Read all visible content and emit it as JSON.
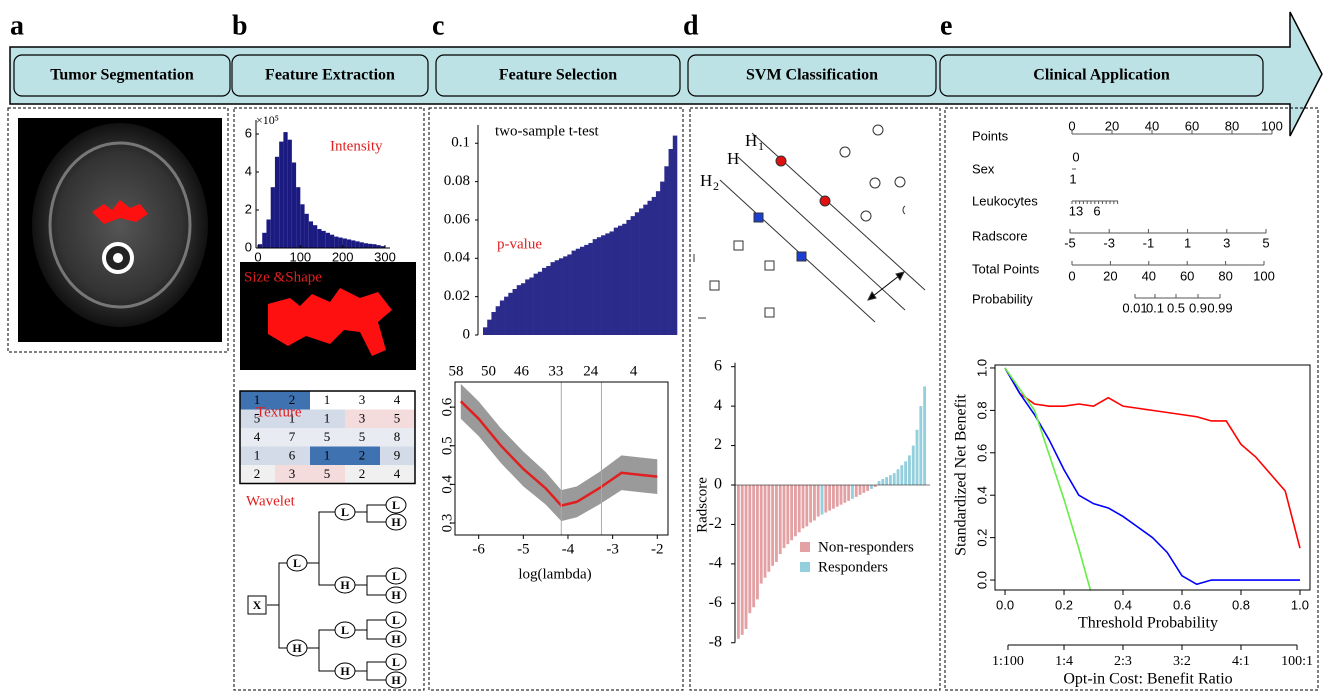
{
  "header": {
    "letters": [
      "a",
      "b",
      "c",
      "d",
      "e"
    ],
    "steps": [
      "Tumor Segmentation",
      "Feature Extraction",
      "Feature Selection",
      "SVM Classification",
      "Clinical Application"
    ]
  },
  "panel_b": {
    "histogram": {
      "exponent_label": "×10⁵",
      "label": "Intensity",
      "bins": [
        0,
        10,
        20,
        30,
        40,
        50,
        60,
        70,
        80,
        90,
        100,
        110,
        120,
        130,
        140,
        150,
        160,
        170,
        180,
        190,
        200,
        210,
        220,
        230,
        240,
        250,
        260,
        270,
        280,
        290,
        300
      ],
      "counts": [
        0.2,
        0.8,
        1.5,
        3.2,
        4.8,
        5.6,
        6.1,
        5.7,
        4.5,
        3.2,
        2.3,
        1.8,
        1.4,
        1.2,
        1.0,
        0.9,
        0.8,
        0.7,
        0.6,
        0.55,
        0.5,
        0.45,
        0.4,
        0.35,
        0.3,
        0.25,
        0.22,
        0.2,
        0.15,
        0.1
      ],
      "color": "#1a1a80",
      "xlim": [
        0,
        300
      ],
      "xticks": [
        0,
        100,
        200,
        300
      ],
      "ylim": [
        0,
        6.5
      ],
      "yticks": [
        0,
        2,
        4,
        6
      ]
    },
    "shape_label": "Size &Shape",
    "texture": {
      "label": "Texture",
      "rows": [
        [
          1,
          2,
          1,
          3,
          4
        ],
        [
          5,
          1,
          1,
          3,
          5
        ],
        [
          4,
          7,
          5,
          5,
          8
        ],
        [
          1,
          6,
          1,
          2,
          9
        ],
        [
          2,
          3,
          5,
          2,
          4
        ]
      ]
    },
    "wavelet": {
      "label": "Wavelet",
      "nodes": [
        "X",
        "L",
        "H",
        "L",
        "H",
        "L",
        "H",
        "L",
        "H",
        "L",
        "H",
        "L",
        "H",
        "L",
        "H"
      ]
    }
  },
  "panel_c": {
    "ttest": {
      "title": "two-sample t-test",
      "label": "p-value",
      "color": "#2b2b8c",
      "values": [
        0.004,
        0.008,
        0.012,
        0.015,
        0.018,
        0.02,
        0.022,
        0.024,
        0.026,
        0.027,
        0.029,
        0.03,
        0.032,
        0.033,
        0.035,
        0.036,
        0.038,
        0.039,
        0.04,
        0.041,
        0.042,
        0.044,
        0.045,
        0.046,
        0.047,
        0.048,
        0.05,
        0.051,
        0.052,
        0.053,
        0.054,
        0.056,
        0.057,
        0.058,
        0.06,
        0.062,
        0.064,
        0.066,
        0.068,
        0.07,
        0.072,
        0.075,
        0.08,
        0.088,
        0.097,
        0.104
      ],
      "ylim": [
        0,
        0.109
      ],
      "yticks": [
        0,
        0.02,
        0.04,
        0.06,
        0.08,
        0.1
      ]
    },
    "lasso": {
      "xlabel": "log(lambda)",
      "x": [
        -6.4,
        -6,
        -5.5,
        -5,
        -4.5,
        -4.15,
        -3.8,
        -3.3,
        -2.8,
        -2.4,
        -2
      ],
      "mean": [
        0.615,
        0.57,
        0.5,
        0.44,
        0.39,
        0.345,
        0.355,
        0.39,
        0.43,
        0.425,
        0.42
      ],
      "error": [
        0.045,
        0.045,
        0.045,
        0.045,
        0.042,
        0.04,
        0.04,
        0.042,
        0.045,
        0.045,
        0.045
      ],
      "lines": [
        -4.15,
        -3.25
      ],
      "xlim": [
        -6.53,
        -1.76
      ],
      "xticks": [
        -6,
        -5,
        -4,
        -3,
        -2
      ],
      "ylim": [
        0.269,
        0.665
      ],
      "yticks": [
        0.3,
        0.4,
        0.5,
        0.6
      ],
      "top_ticks": [
        {
          "value": -6.53,
          "label": "58"
        },
        {
          "value": -5.78,
          "label": "50"
        },
        {
          "value": -5.04,
          "label": "46"
        },
        {
          "value": -4.27,
          "label": "33"
        },
        {
          "value": -3.49,
          "label": "24"
        },
        {
          "value": -2.53,
          "label": "4"
        }
      ]
    }
  },
  "panel_d": {
    "svm": {
      "h": "H",
      "sub1": "1",
      "sub2": "2"
    },
    "waterfall": {
      "ylabel": "Radscore",
      "series": [
        {
          "name": "Non-responders",
          "color": "#e3a1a4"
        },
        {
          "name": "Responders",
          "color": "#93cfdc"
        }
      ],
      "values": [
        -7.8,
        -7.6,
        -7.3,
        -6.5,
        -6.2,
        -5.8,
        -5.0,
        -4.7,
        -4.4,
        -4.1,
        -3.9,
        -3.5,
        -3.2,
        -3.0,
        -2.8,
        -2.6,
        -2.4,
        -2.2,
        -2.1,
        -1.9,
        -1.8,
        -1.6,
        -1.5,
        -1.4,
        -1.3,
        -1.2,
        -1.1,
        -1.0,
        -0.9,
        -0.8,
        -0.7,
        -0.6,
        -0.5,
        -0.4,
        -0.3,
        -0.2,
        -0.1,
        0.2,
        0.3,
        0.4,
        0.5,
        0.6,
        0.8,
        1.0,
        1.2,
        1.5,
        2.0,
        2.8,
        4.0,
        5.0
      ],
      "group": [
        0,
        0,
        0,
        0,
        0,
        0,
        0,
        0,
        0,
        0,
        0,
        0,
        0,
        0,
        0,
        0,
        0,
        0,
        0,
        0,
        0,
        0,
        1,
        0,
        0,
        0,
        0,
        0,
        0,
        0,
        1,
        0,
        0,
        0,
        0,
        1,
        0,
        1,
        1,
        1,
        1,
        1,
        1,
        1,
        1,
        1,
        1,
        1,
        1,
        1
      ],
      "ylim": [
        -8,
        6.2
      ],
      "yticks": [
        -8,
        -6,
        -4,
        -2,
        0,
        2,
        4,
        6
      ]
    }
  },
  "panel_e": {
    "nomogram": {
      "rows": [
        "Points",
        "Sex",
        "Leukocytes",
        "Radscore",
        "Total Points",
        "Probability"
      ],
      "points": [
        0,
        20,
        40,
        60,
        80,
        100
      ],
      "sex": [
        0,
        1
      ],
      "leukocytes": [
        13,
        6
      ],
      "radscore": [
        -5,
        -3,
        -1,
        1,
        3,
        5
      ],
      "total_points": [
        0,
        20,
        40,
        60,
        80,
        100
      ],
      "probability": [
        0.01,
        0.1,
        0.5,
        0.9,
        0.99
      ]
    },
    "dca": {
      "ylabel": "Standardized Net Benefit",
      "xlabel": "Threshold Probability",
      "x2label": "Opt-in Cost: Benefit Ratio",
      "series": [
        {
          "color": "#ff0000",
          "x": [
            0,
            0.05,
            0.1,
            0.15,
            0.2,
            0.25,
            0.3,
            0.35,
            0.4,
            0.45,
            0.5,
            0.55,
            0.6,
            0.65,
            0.7,
            0.75,
            0.8,
            0.85,
            0.9,
            0.95,
            1.0
          ],
          "values": [
            1.0,
            0.88,
            0.83,
            0.82,
            0.82,
            0.83,
            0.82,
            0.86,
            0.82,
            0.81,
            0.8,
            0.79,
            0.78,
            0.77,
            0.75,
            0.75,
            0.64,
            0.58,
            0.5,
            0.42,
            0.15
          ]
        },
        {
          "color": "#0000ff",
          "x": [
            0,
            0.05,
            0.1,
            0.15,
            0.2,
            0.25,
            0.3,
            0.35,
            0.4,
            0.45,
            0.5,
            0.55,
            0.6,
            0.65,
            0.7,
            0.75,
            0.8,
            0.85,
            0.9,
            0.95,
            1.0
          ],
          "values": [
            1.0,
            0.88,
            0.78,
            0.66,
            0.52,
            0.4,
            0.36,
            0.34,
            0.3,
            0.25,
            0.2,
            0.13,
            0.02,
            -0.02,
            0,
            0,
            0,
            0,
            0,
            0,
            0
          ]
        },
        {
          "color": "#66ee44",
          "x": [
            0,
            0.1,
            0.2,
            0.25,
            0.29
          ],
          "values": [
            1.0,
            0.8,
            0.38,
            0.15,
            -0.05
          ]
        }
      ],
      "xlim": [
        -0.034,
        1.034
      ],
      "xticks": [
        {
          "value": 0,
          "label": "0.0"
        },
        {
          "value": 0.2,
          "label": "0.2"
        },
        {
          "value": 0.4,
          "label": "0.4"
        },
        {
          "value": 0.6,
          "label": "0.6"
        },
        {
          "value": 0.8,
          "label": "0.8"
        },
        {
          "value": 1,
          "label": "1.0"
        }
      ],
      "ylim": [
        -0.047,
        1.014
      ],
      "yticks": [
        {
          "value": 0,
          "label": "0.0"
        },
        {
          "value": 0.2,
          "label": "0.2"
        },
        {
          "value": 0.4,
          "label": "0.4"
        },
        {
          "value": 0.6,
          "label": "0.6"
        },
        {
          "value": 0.8,
          "label": "0.8"
        },
        {
          "value": 1,
          "label": "1.0"
        }
      ],
      "x2ticks": [
        {
          "value": 0.01,
          "label": "1:100"
        },
        {
          "value": 0.2,
          "label": "1:4"
        },
        {
          "value": 0.4,
          "label": "2:3"
        },
        {
          "value": 0.6,
          "label": "3:2"
        },
        {
          "value": 0.8,
          "label": "4:1"
        },
        {
          "value": 0.99,
          "label": "100:1"
        }
      ]
    }
  }
}
